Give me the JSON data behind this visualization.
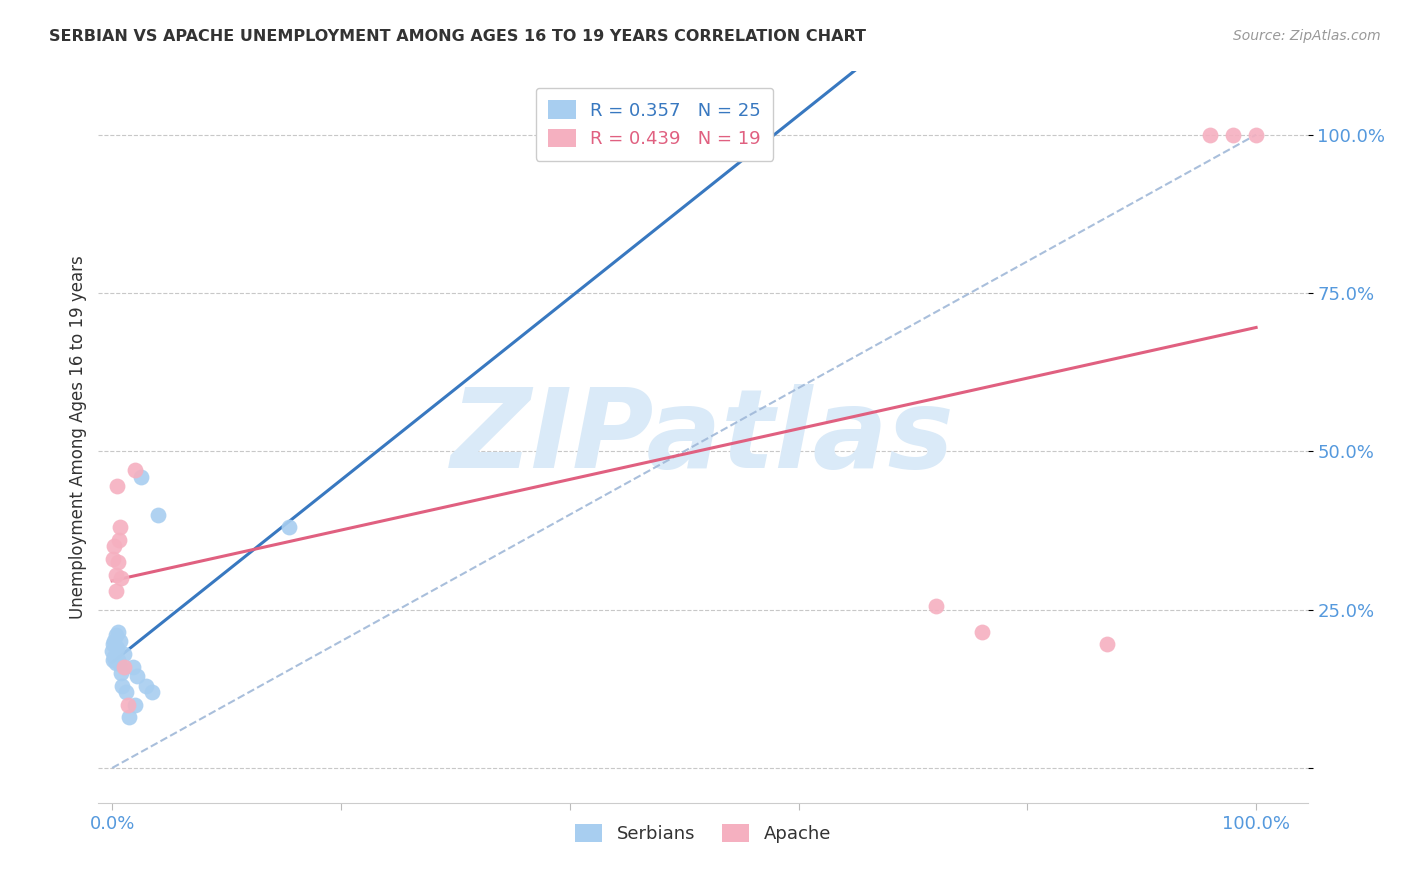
{
  "title": "SERBIAN VS APACHE UNEMPLOYMENT AMONG AGES 16 TO 19 YEARS CORRELATION CHART",
  "source": "Source: ZipAtlas.com",
  "ylabel": "Unemployment Among Ages 16 to 19 years",
  "legend_label_serbian": "Serbians",
  "legend_label_apache": "Apache",
  "background_color": "#ffffff",
  "grid_color": "#c8c8c8",
  "serbian_color": "#a8cef0",
  "apache_color": "#f5b0c0",
  "serbian_line_color": "#3878c0",
  "apache_line_color": "#e06080",
  "diagonal_color": "#a0b8d8",
  "watermark_color": "#daeaf8",
  "axis_label_color": "#5599dd",
  "title_color": "#333333",
  "serbian_x": [
    0.0,
    0.001,
    0.001,
    0.002,
    0.002,
    0.003,
    0.003,
    0.004,
    0.005,
    0.005,
    0.006,
    0.007,
    0.008,
    0.009,
    0.01,
    0.012,
    0.015,
    0.018,
    0.02,
    0.022,
    0.025,
    0.03,
    0.035,
    0.04,
    0.155
  ],
  "serbian_y": [
    0.185,
    0.195,
    0.17,
    0.2,
    0.175,
    0.165,
    0.21,
    0.19,
    0.17,
    0.215,
    0.165,
    0.2,
    0.15,
    0.13,
    0.18,
    0.12,
    0.08,
    0.16,
    0.1,
    0.145,
    0.46,
    0.13,
    0.12,
    0.4,
    0.38
  ],
  "apache_x": [
    0.001,
    0.002,
    0.003,
    0.003,
    0.004,
    0.005,
    0.006,
    0.007,
    0.008,
    0.01,
    0.014,
    0.02,
    0.72,
    0.76,
    0.87,
    0.96,
    0.98,
    1.0
  ],
  "apache_y": [
    0.33,
    0.35,
    0.305,
    0.28,
    0.445,
    0.325,
    0.36,
    0.38,
    0.3,
    0.16,
    0.1,
    0.47,
    0.255,
    0.215,
    0.195,
    1.0,
    1.0,
    1.0
  ],
  "xlim": [
    0.0,
    1.0
  ],
  "ylim": [
    0.0,
    1.05
  ],
  "figsize": [
    14.06,
    8.92
  ],
  "dpi": 100
}
